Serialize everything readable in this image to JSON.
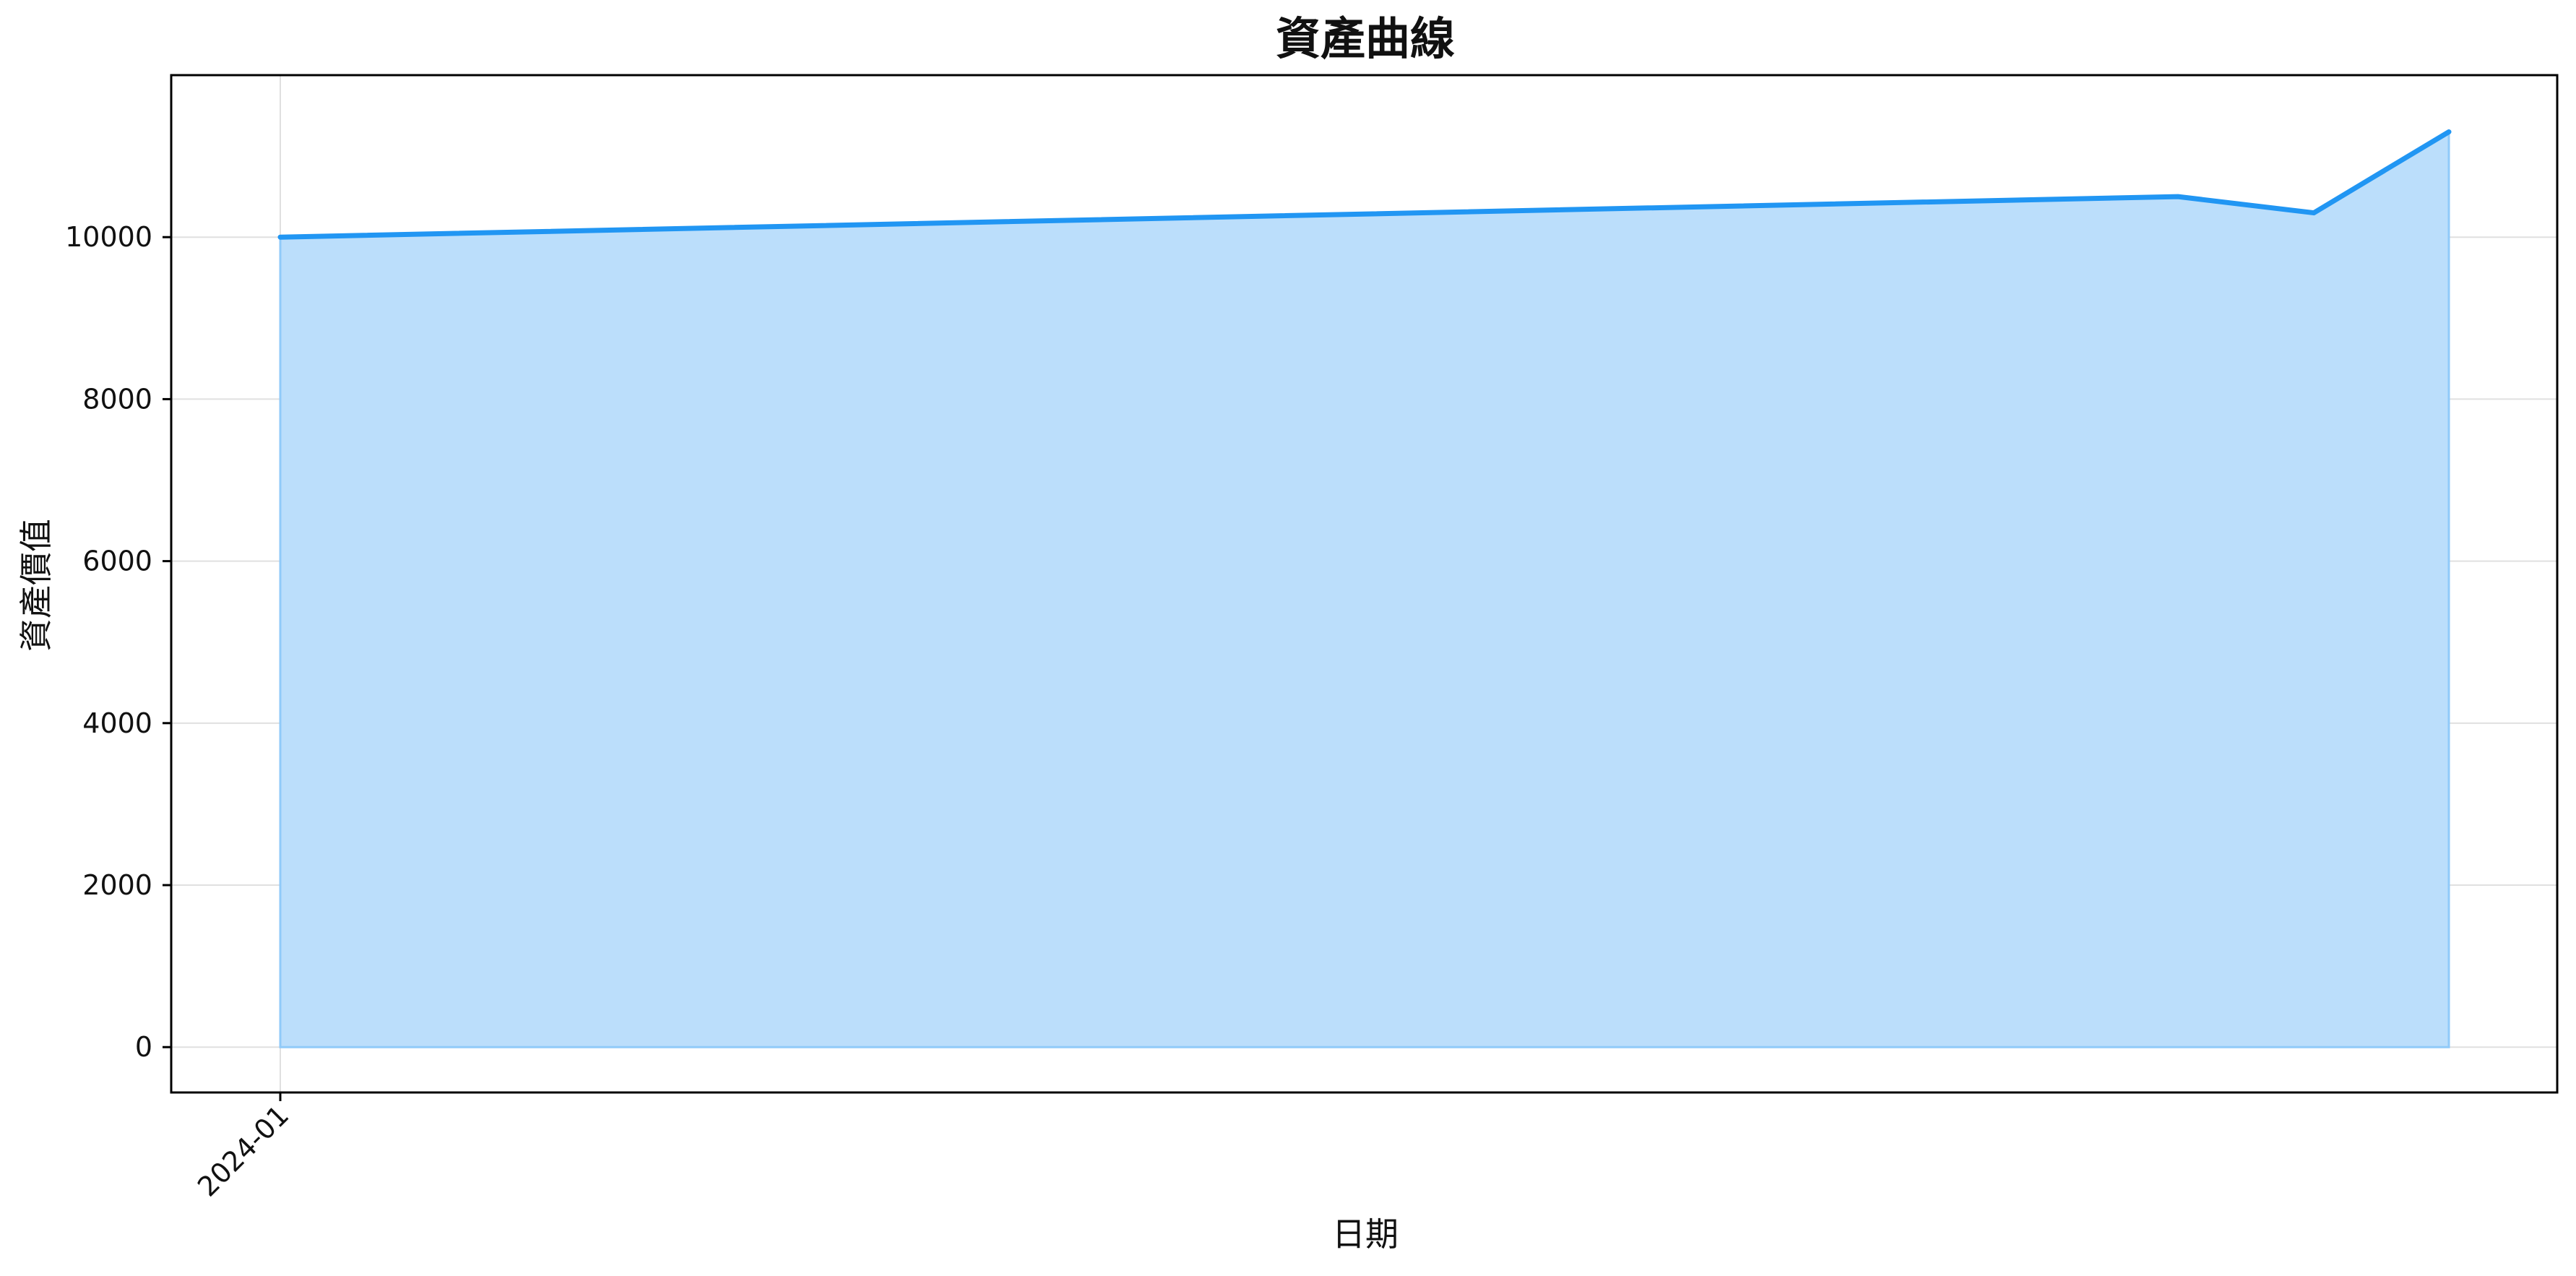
{
  "chart_data": {
    "type": "area",
    "title": "資產曲線",
    "xlabel": "日期",
    "ylabel": "資產價值",
    "x_tick_labels": [
      "2024-01"
    ],
    "y_ticks": [
      0,
      2000,
      4000,
      6000,
      8000,
      10000
    ],
    "ylim": [
      -560,
      12000
    ],
    "grid": true,
    "colors": {
      "line": "#2196F3",
      "fill": "#BBDEFB",
      "grid": "#E0E0E0",
      "frame": "#000000"
    },
    "series": [
      {
        "values": [
          10000,
          10500,
          10300,
          11300
        ]
      }
    ]
  }
}
